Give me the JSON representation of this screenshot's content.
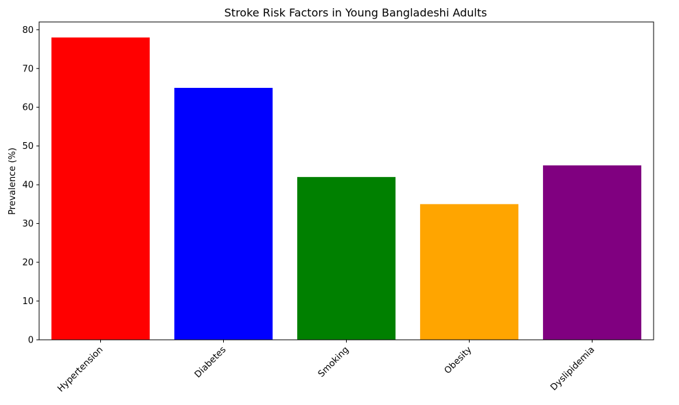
{
  "chart_data": {
    "type": "bar",
    "title": "Stroke Risk Factors in Young Bangladeshi Adults",
    "xlabel": "",
    "ylabel": "Prevalence (%)",
    "categories": [
      "Hypertension",
      "Diabetes",
      "Smoking",
      "Obesity",
      "Dyslipidemia"
    ],
    "values": [
      78,
      65,
      42,
      35,
      45
    ],
    "colors": [
      "#ff0000",
      "#0000ff",
      "#008000",
      "#ffa500",
      "#800080"
    ],
    "ylim": [
      0,
      82
    ],
    "yticks": [
      0,
      10,
      20,
      30,
      40,
      50,
      60,
      70,
      80
    ],
    "grid": false,
    "legend": "none"
  }
}
